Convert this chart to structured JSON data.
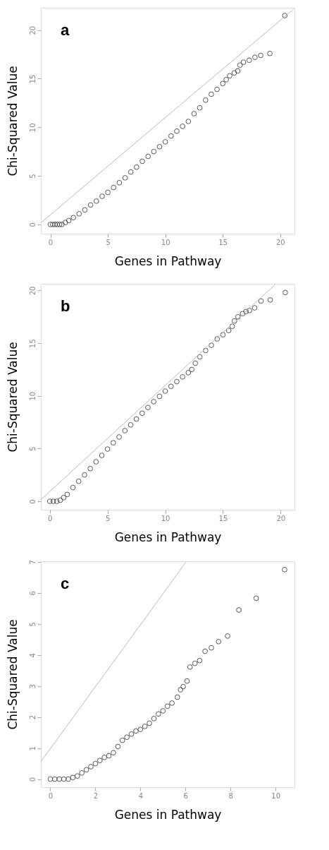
{
  "chart_data": [
    {
      "type": "scatter",
      "xlabel": "Genes in Pathway",
      "ylabel": "Chi-Squared Value",
      "annotations": [
        "a"
      ],
      "xlim": [
        -0.83,
        21.24
      ],
      "ylim": [
        -0.95,
        22.3
      ],
      "xticks": [
        0,
        5,
        10,
        15,
        20
      ],
      "yticks": [
        0,
        5,
        10,
        15,
        20
      ],
      "grid": false,
      "series": [
        {
          "color": "#444444",
          "marker": "circle",
          "x": [
            0,
            0.2,
            0.4,
            0.6,
            0.8,
            1.0,
            1.3,
            1.6,
            2,
            2.5,
            3,
            3.5,
            4,
            4.5,
            5,
            5.5,
            6,
            6.5,
            7,
            7.5,
            8,
            8.5,
            9,
            9.5,
            10,
            10.5,
            11,
            11.5,
            12,
            12.5,
            13,
            13.5,
            14,
            14.5,
            15,
            15.3,
            15.6,
            16,
            16.3,
            16.5,
            16.8,
            17.3,
            17.8,
            18.3,
            19.1,
            20.4
          ],
          "values": [
            0,
            0,
            0,
            0,
            0,
            0,
            0.2,
            0.4,
            0.7,
            1.1,
            1.5,
            2.0,
            2.4,
            2.9,
            3.3,
            3.8,
            4.3,
            4.8,
            5.4,
            5.9,
            6.5,
            7.0,
            7.5,
            8.0,
            8.5,
            9.1,
            9.6,
            10.1,
            10.6,
            11.4,
            12.0,
            12.8,
            13.4,
            13.9,
            14.5,
            14.9,
            15.3,
            15.6,
            15.8,
            16.4,
            16.7,
            16.9,
            17.2,
            17.4,
            17.6,
            21.5
          ]
        },
        {
          "type": "line",
          "color": "#bbbbbb",
          "marker": "none",
          "x": [
            -0.8,
            21.2
          ],
          "values": [
            0.2,
            22.2
          ]
        }
      ]
    },
    {
      "type": "scatter",
      "xlabel": "Genes in Pathway",
      "ylabel": "Chi-Squared Value",
      "annotations": [
        "b"
      ],
      "xlim": [
        -0.78,
        21.2
      ],
      "ylim": [
        -0.8,
        20.63
      ],
      "xticks": [
        0,
        5,
        10,
        15,
        20
      ],
      "yticks": [
        0,
        5,
        10,
        15,
        20
      ],
      "grid": false,
      "series": [
        {
          "color": "#444444",
          "marker": "circle",
          "x": [
            0,
            0.3,
            0.6,
            0.9,
            1.2,
            1.5,
            2,
            2.5,
            3,
            3.5,
            4,
            4.5,
            5,
            5.5,
            6,
            6.5,
            7,
            7.5,
            8,
            8.5,
            9,
            9.5,
            10,
            10.5,
            11,
            11.5,
            12,
            12.3,
            12.6,
            13,
            13.5,
            14,
            14.5,
            15,
            15.5,
            15.8,
            16,
            16.3,
            16.7,
            17,
            17.3,
            17.75,
            18.3,
            19.1,
            20.4
          ],
          "values": [
            0,
            0,
            0,
            0.1,
            0.35,
            0.65,
            1.3,
            1.9,
            2.5,
            3.1,
            3.75,
            4.35,
            4.95,
            5.55,
            6.1,
            6.7,
            7.25,
            7.8,
            8.35,
            8.9,
            9.45,
            9.95,
            10.45,
            10.9,
            11.35,
            11.8,
            12.2,
            12.5,
            13.1,
            13.7,
            14.3,
            14.8,
            15.4,
            15.8,
            16.2,
            16.6,
            17.1,
            17.5,
            17.8,
            18.0,
            18.1,
            18.35,
            19.0,
            19.1,
            19.8
          ]
        },
        {
          "type": "line",
          "color": "#bbbbbb",
          "marker": "none",
          "x": [
            -0.78,
            19.56
          ],
          "values": [
            0.15,
            20.6
          ]
        }
      ]
    },
    {
      "type": "scatter",
      "xlabel": "Genes in Pathway",
      "ylabel": "Chi-Squared Value",
      "annotations": [
        "c"
      ],
      "xlim": [
        -0.42,
        10.84
      ],
      "ylim": [
        -0.26,
        7.02
      ],
      "xticks": [
        0,
        2,
        4,
        6,
        8,
        10
      ],
      "yticks": [
        0,
        1,
        2,
        3,
        4,
        5,
        6,
        7
      ],
      "grid": false,
      "series": [
        {
          "color": "#444444",
          "marker": "circle",
          "x": [
            0,
            0.2,
            0.4,
            0.6,
            0.8,
            1.0,
            1.2,
            1.4,
            1.6,
            1.8,
            2,
            2.2,
            2.4,
            2.6,
            2.8,
            3.0,
            3.2,
            3.4,
            3.6,
            3.8,
            4.0,
            4.2,
            4.4,
            4.6,
            4.8,
            5.0,
            5.2,
            5.4,
            5.64,
            5.78,
            5.9,
            6.07,
            6.2,
            6.42,
            6.63,
            6.87,
            7.15,
            7.47,
            7.87,
            8.37,
            9.14,
            10.4
          ],
          "values": [
            0,
            0,
            0,
            0,
            0,
            0.05,
            0.1,
            0.2,
            0.3,
            0.4,
            0.5,
            0.6,
            0.7,
            0.75,
            0.85,
            1.05,
            1.25,
            1.35,
            1.45,
            1.55,
            1.6,
            1.7,
            1.8,
            1.95,
            2.1,
            2.2,
            2.35,
            2.45,
            2.64,
            2.88,
            2.98,
            3.16,
            3.61,
            3.73,
            3.82,
            4.12,
            4.23,
            4.43,
            4.61,
            5.45,
            5.83,
            6.75
          ]
        },
        {
          "type": "line",
          "color": "#bbbbbb",
          "marker": "none",
          "x": [
            -0.41,
            6.03
          ],
          "values": [
            0.57,
            7.0
          ]
        }
      ]
    }
  ]
}
